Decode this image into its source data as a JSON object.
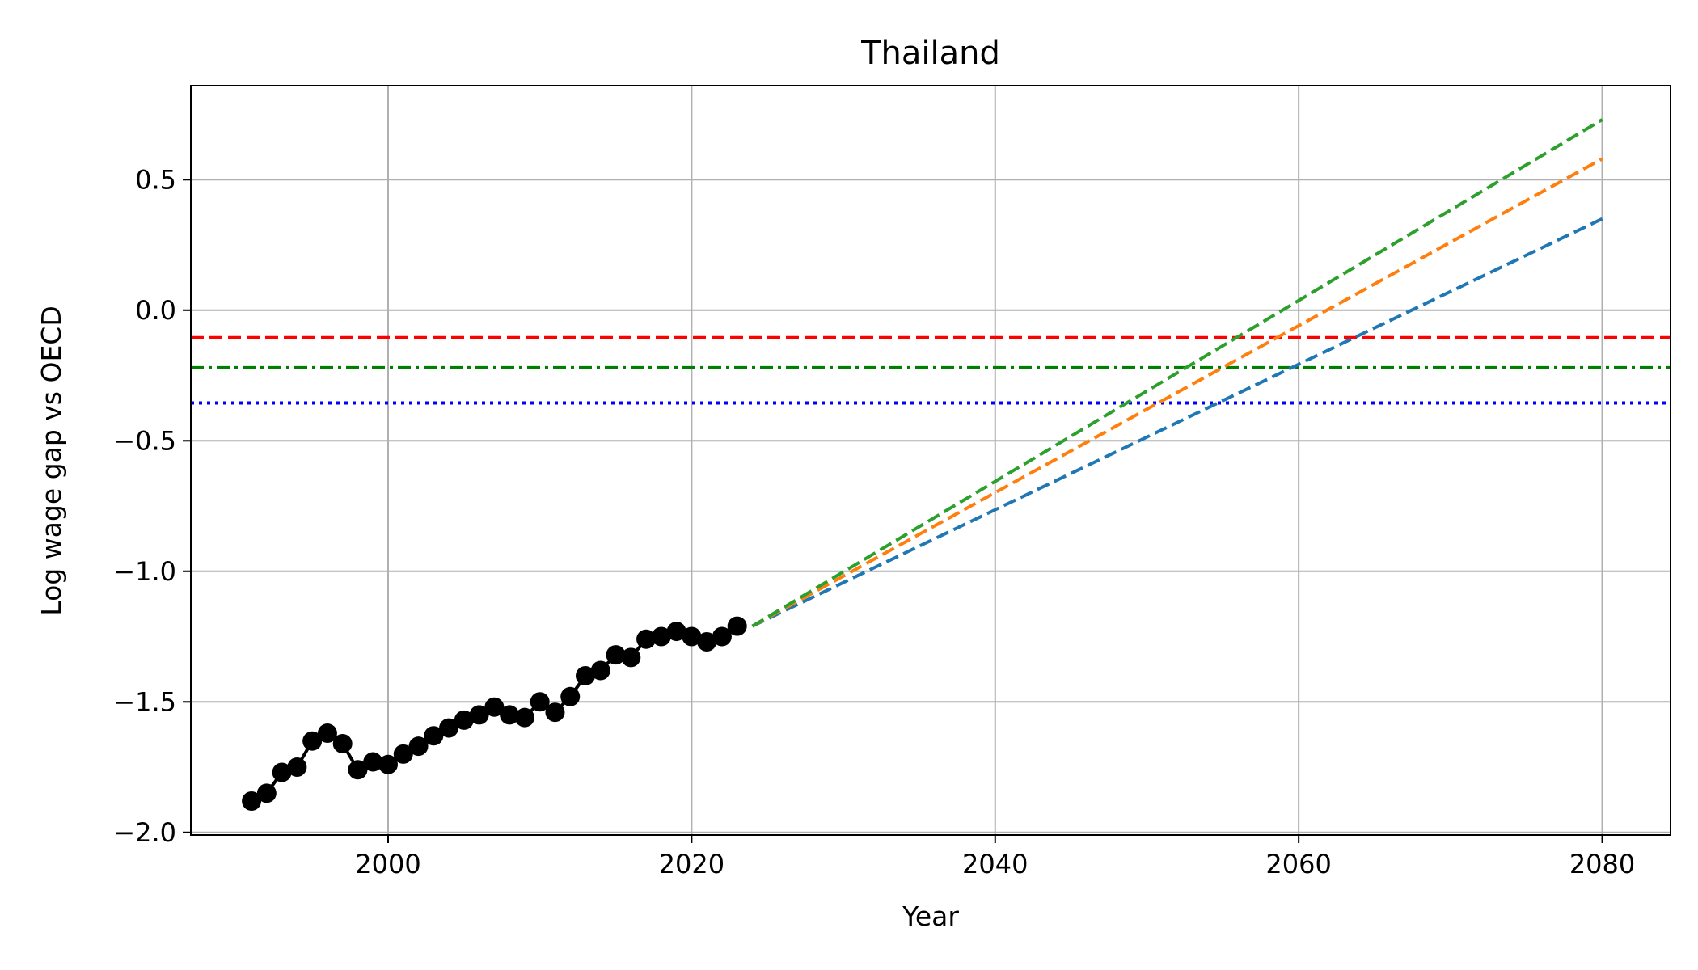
{
  "chart_data": {
    "type": "line",
    "title": "Thailand",
    "xlabel": "Year",
    "ylabel": "Log wage gap vs OECD",
    "xlim": [
      1987,
      2084.5
    ],
    "ylim": [
      -2.01,
      0.86
    ],
    "xticks": [
      2000,
      2020,
      2040,
      2060,
      2080
    ],
    "yticks": [
      -2.0,
      -1.5,
      -1.0,
      -0.5,
      0.0,
      0.5
    ],
    "grid": true,
    "historical": {
      "color": "#000000",
      "marker": "circle",
      "x": [
        1991,
        1992,
        1993,
        1994,
        1995,
        1996,
        1997,
        1998,
        1999,
        2000,
        2001,
        2002,
        2003,
        2004,
        2005,
        2006,
        2007,
        2008,
        2009,
        2010,
        2011,
        2012,
        2013,
        2014,
        2015,
        2016,
        2017,
        2018,
        2019,
        2020,
        2021,
        2022,
        2023
      ],
      "y": [
        -1.88,
        -1.85,
        -1.77,
        -1.75,
        -1.65,
        -1.62,
        -1.66,
        -1.76,
        -1.73,
        -1.74,
        -1.7,
        -1.67,
        -1.63,
        -1.6,
        -1.57,
        -1.55,
        -1.52,
        -1.55,
        -1.56,
        -1.5,
        -1.54,
        -1.48,
        -1.4,
        -1.38,
        -1.32,
        -1.33,
        -1.26,
        -1.25,
        -1.23,
        -1.25,
        -1.27,
        -1.25,
        -1.21
      ]
    },
    "projections": [
      {
        "color": "#1f77b4",
        "style": "dashed",
        "x": [
          2024,
          2080
        ],
        "y": [
          -1.21,
          0.35
        ]
      },
      {
        "color": "#ff7f0e",
        "style": "dashed",
        "x": [
          2024,
          2080
        ],
        "y": [
          -1.21,
          0.58
        ]
      },
      {
        "color": "#2ca02c",
        "style": "dashed",
        "x": [
          2024,
          2080
        ],
        "y": [
          -1.21,
          0.73
        ]
      }
    ],
    "reference_lines": [
      {
        "color": "#ff0000",
        "style": "dashed",
        "y": -0.105
      },
      {
        "color": "#008000",
        "style": "dashdot",
        "y": -0.22
      },
      {
        "color": "#0000ff",
        "style": "dotted",
        "y": -0.355
      }
    ]
  }
}
